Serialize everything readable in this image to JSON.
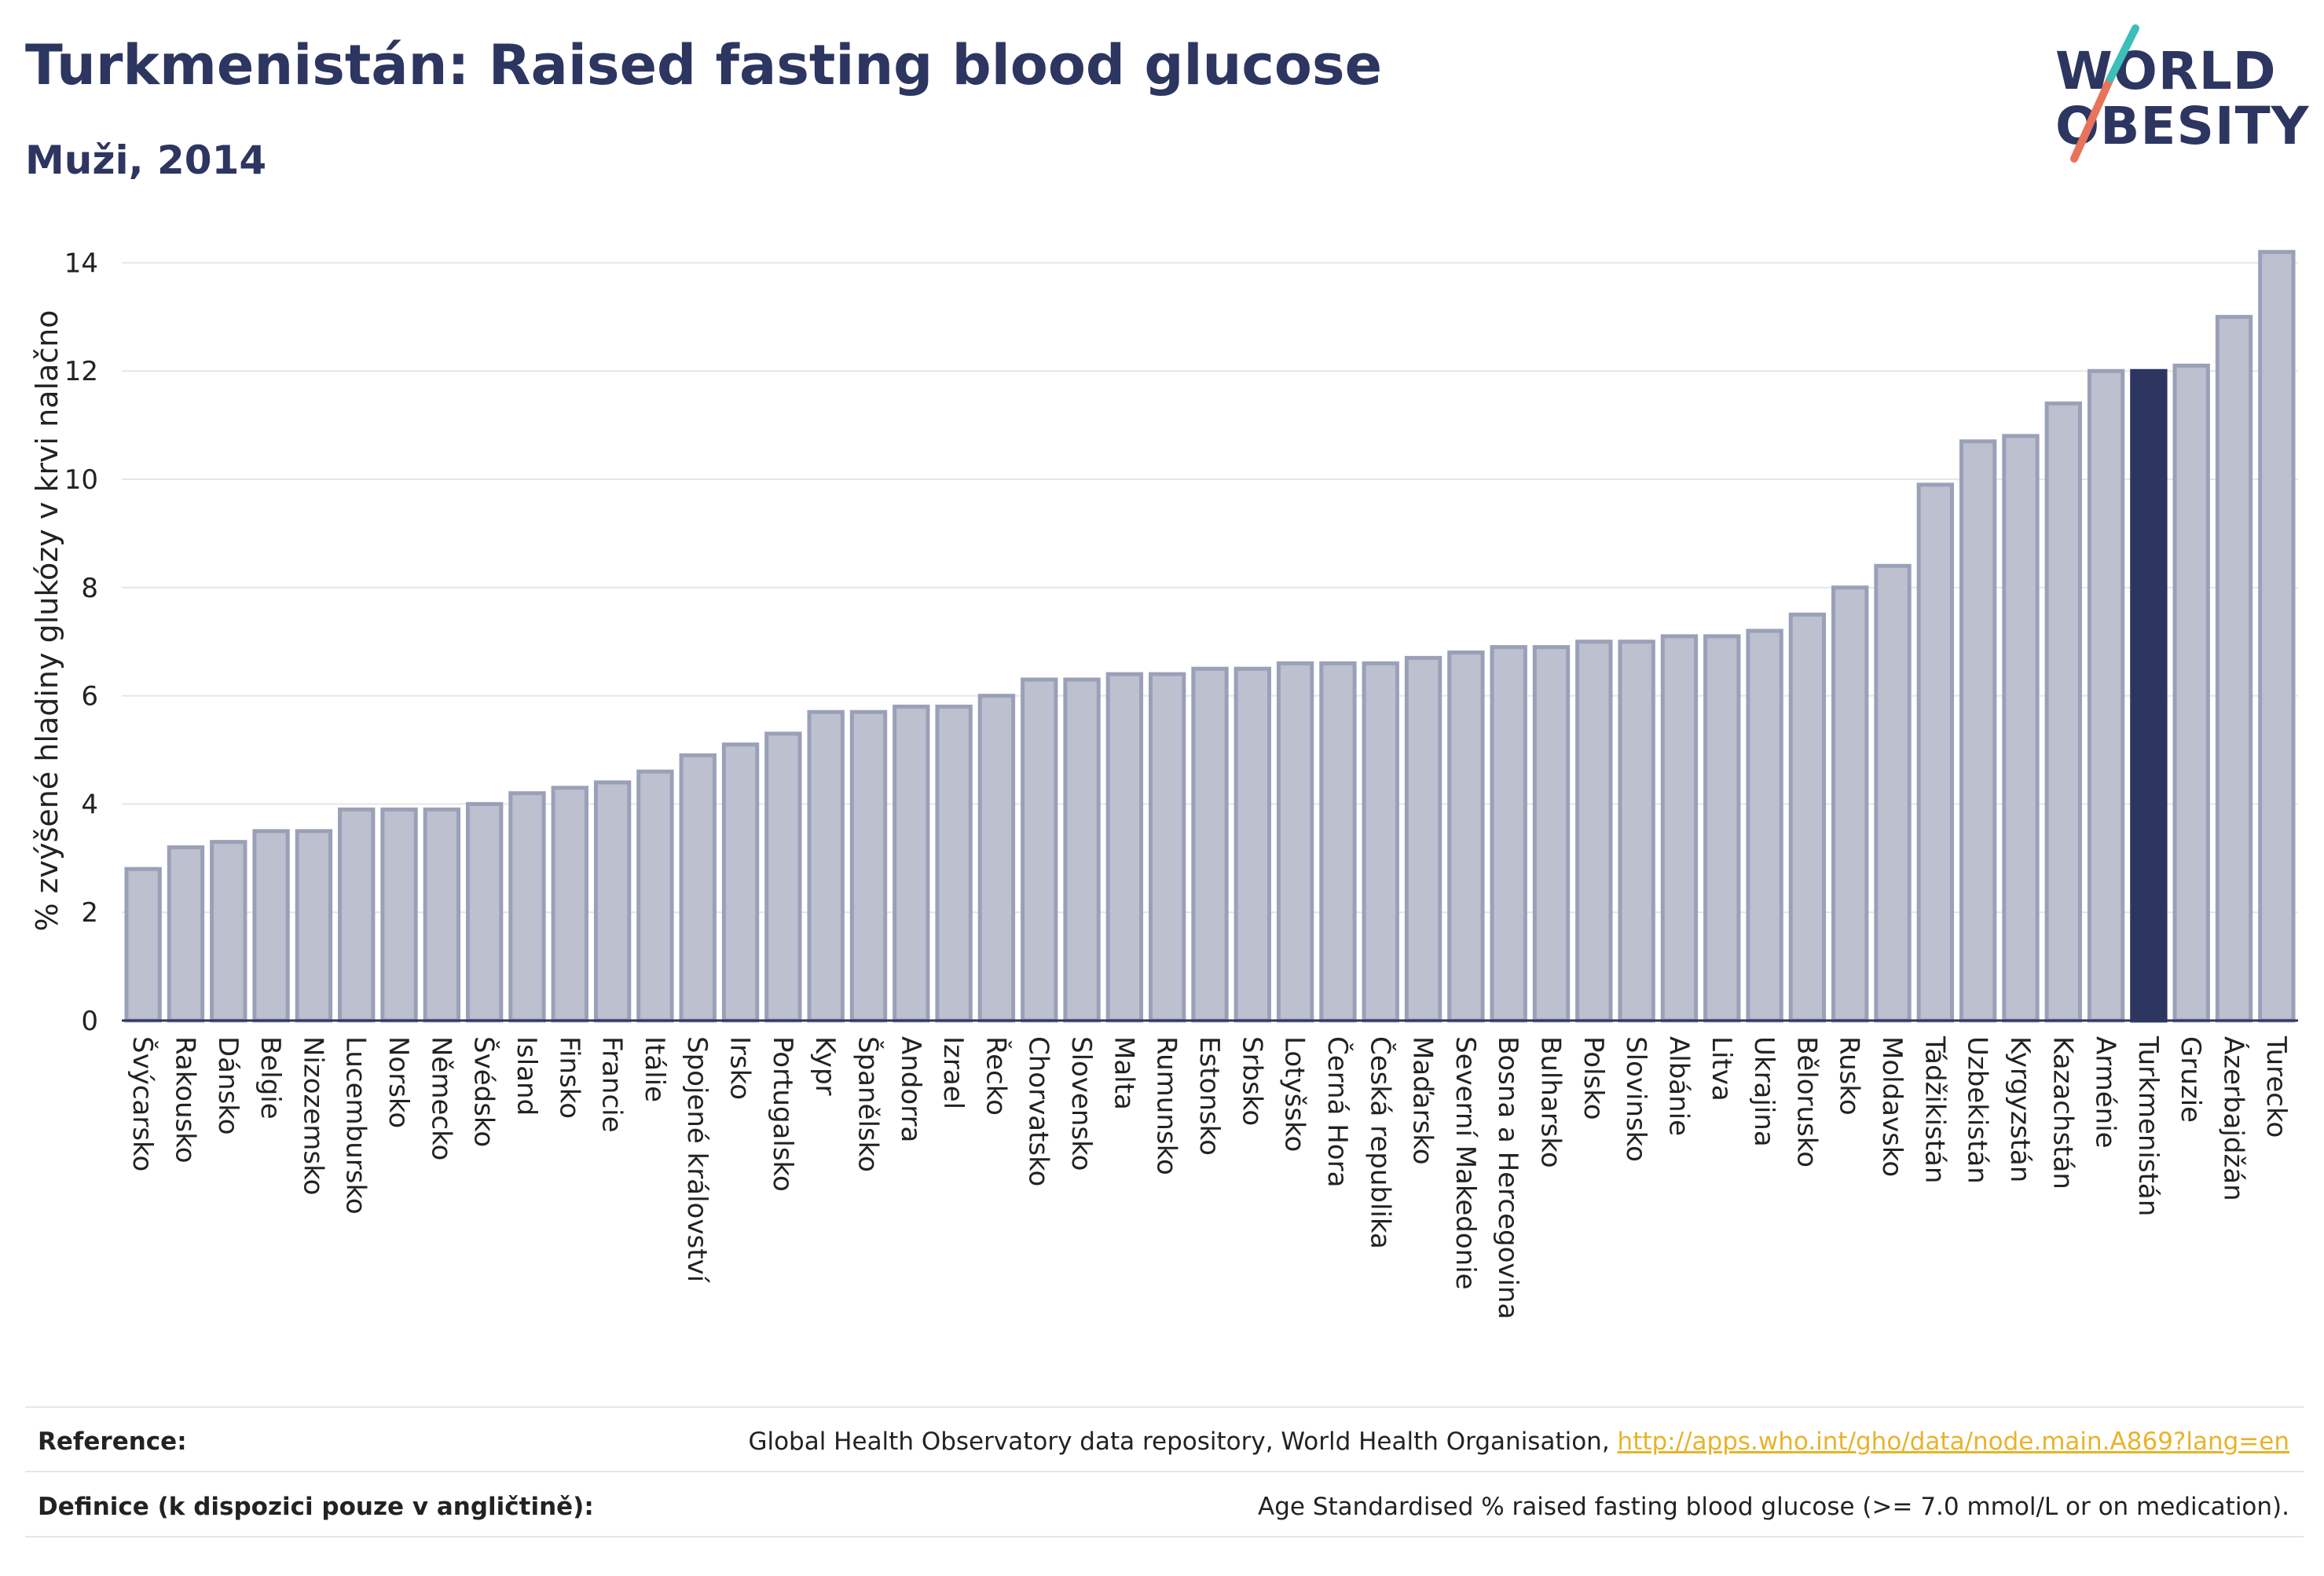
{
  "header": {
    "title": "Turkmenistán: Raised fasting blood glucose",
    "subtitle": "Muži, 2014"
  },
  "logo": {
    "line1": "WORLD",
    "line2": "OBESITY"
  },
  "footer": {
    "reference_label": "Reference:",
    "reference_text": "Global Health Observatory data repository, World Health Organisation, ",
    "reference_link": "http://apps.who.int/gho/data/node.main.A869?lang=en",
    "definition_label": "Definice (k dispozici pouze v angličtině):",
    "definition_text": "Age Standardised % raised fasting blood glucose (>= 7.0 mmol/L or on medication)."
  },
  "colors": {
    "bar": "#bcc0cf",
    "bar_border": "#9aa0b8",
    "highlight": "#2d3561",
    "text": "#2d3561",
    "link": "#e8b32a"
  },
  "chart_data": {
    "type": "bar",
    "ylabel": "% zvýšené hladiny glukózy v krvi nalačno",
    "ylim": [
      0,
      14.5
    ],
    "yticks": [
      0,
      2,
      4,
      6,
      8,
      10,
      12,
      14
    ],
    "grid": true,
    "highlight": "Turkmenistán",
    "categories": [
      "Švýcarsko",
      "Rakousko",
      "Dánsko",
      "Belgie",
      "Nizozemsko",
      "Lucembursko",
      "Norsko",
      "Německo",
      "Švédsko",
      "Island",
      "Finsko",
      "Francie",
      "Itálie",
      "Spojené království",
      "Irsko",
      "Portugalsko",
      "Kypr",
      "Španělsko",
      "Andorra",
      "Izrael",
      "Řecko",
      "Chorvatsko",
      "Slovensko",
      "Malta",
      "Rumunsko",
      "Estonsko",
      "Srbsko",
      "Lotyšsko",
      "Černá Hora",
      "Česká republika",
      "Maďarsko",
      "Severní Makedonie",
      "Bosna a Hercegovina",
      "Bulharsko",
      "Polsko",
      "Slovinsko",
      "Albánie",
      "Litva",
      "Ukrajina",
      "Bělorusko",
      "Rusko",
      "Moldavsko",
      "Tádžikistán",
      "Uzbekistán",
      "Kyrgyzstán",
      "Kazachstán",
      "Arménie",
      "Turkmenistán",
      "Gruzie",
      "Ázerbajdžán",
      "Turecko"
    ],
    "values": [
      2.8,
      3.2,
      3.3,
      3.5,
      3.5,
      3.9,
      3.9,
      3.9,
      4.0,
      4.2,
      4.3,
      4.4,
      4.6,
      4.9,
      5.1,
      5.3,
      5.7,
      5.7,
      5.8,
      5.8,
      6.0,
      6.3,
      6.3,
      6.4,
      6.4,
      6.5,
      6.5,
      6.6,
      6.6,
      6.6,
      6.7,
      6.8,
      6.9,
      6.9,
      7.0,
      7.0,
      7.1,
      7.1,
      7.2,
      7.5,
      8.0,
      8.4,
      9.9,
      10.7,
      10.8,
      11.4,
      12.0,
      12.0,
      12.1,
      13.0,
      14.2
    ]
  }
}
